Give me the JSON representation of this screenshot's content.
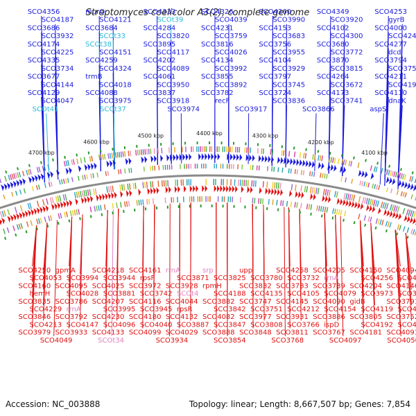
{
  "title": "Streptomyces coelicolor A3(2), complete genome",
  "accession": "Accession: NC_003888",
  "topology": "Topology: linear; Length: 8,667,507 bp; Genes: 7,854",
  "colors": {
    "forward": "#1a1adc",
    "reverse": "#e01010",
    "forward_rna": "#28b8d8",
    "reverse_rna": "#e080c0",
    "backbone": "#8a8a8a"
  },
  "ticks": [
    "4700 kbp",
    "4600 kbp",
    "4500 kbp",
    "4400 kbp",
    "4300 kbp",
    "4200 kbp",
    "4100 kbp"
  ],
  "forward_labels": [
    {
      "t": "SCO4356",
      "k": "gene"
    },
    {
      "t": "murQ",
      "k": "gene"
    },
    {
      "t": "SCO4333",
      "k": "gene"
    },
    {
      "t": "SCO4326",
      "k": "gene"
    },
    {
      "t": "SCO4260",
      "k": "gene"
    },
    {
      "t": "SCO4349",
      "k": "gene"
    },
    {
      "t": "SCO4253",
      "k": "gene"
    },
    {
      "t": "SCO4187",
      "k": "gene"
    },
    {
      "t": "SCO4121",
      "k": "gene"
    },
    {
      "t": "SCOt39",
      "k": "rna"
    },
    {
      "t": "SCO4039",
      "k": "gene"
    },
    {
      "t": "SCO3990",
      "k": "gene"
    },
    {
      "t": "SCO3920",
      "k": "gene"
    },
    {
      "t": "gyrB",
      "k": "gene"
    },
    {
      "t": "SCO3686",
      "k": "gene"
    },
    {
      "t": "SCO3684",
      "k": "gene"
    },
    {
      "t": "SCO4284",
      "k": "gene"
    },
    {
      "t": "SCO4231",
      "k": "gene"
    },
    {
      "t": "SCO4153",
      "k": "gene"
    },
    {
      "t": "SCO4102",
      "k": "gene"
    },
    {
      "t": "SCO4000",
      "k": "gene"
    },
    {
      "t": "SCO3932",
      "k": "gene"
    },
    {
      "t": "SCOt33",
      "k": "rna"
    },
    {
      "t": "SCO3820",
      "k": "gene"
    },
    {
      "t": "SCO3759",
      "k": "gene"
    },
    {
      "t": "SCO3683",
      "k": "gene"
    },
    {
      "t": "SCO4300",
      "k": "gene"
    },
    {
      "t": "SCO4244",
      "k": "gene"
    },
    {
      "t": "SCO4174",
      "k": "gene"
    },
    {
      "t": "SCOt38",
      "k": "rna"
    },
    {
      "t": "SCO3895",
      "k": "gene"
    },
    {
      "t": "SCO3816",
      "k": "gene"
    },
    {
      "t": "SCO3756",
      "k": "gene"
    },
    {
      "t": "SCO3680",
      "k": "gene"
    },
    {
      "t": "SCO4277",
      "k": "gene"
    },
    {
      "t": "SCO4225",
      "k": "gene"
    },
    {
      "t": "SCO4151",
      "k": "gene"
    },
    {
      "t": "SCO4117",
      "k": "gene"
    },
    {
      "t": "SCO4026",
      "k": "gene"
    },
    {
      "t": "SCO3955",
      "k": "gene"
    },
    {
      "t": "SCO3772",
      "k": "gene"
    },
    {
      "t": "dcd",
      "k": "gene"
    },
    {
      "t": "SCO4335",
      "k": "gene"
    },
    {
      "t": "SCO4259",
      "k": "gene"
    },
    {
      "t": "SCO4202",
      "k": "gene"
    },
    {
      "t": "SCO4134",
      "k": "gene"
    },
    {
      "t": "SCO4104",
      "k": "gene"
    },
    {
      "t": "SCO3870",
      "k": "gene"
    },
    {
      "t": "SCO3794",
      "k": "gene"
    },
    {
      "t": "SCO3734",
      "k": "gene"
    },
    {
      "t": "SCO4324",
      "k": "gene"
    },
    {
      "t": "SCO4089",
      "k": "gene"
    },
    {
      "t": "SCO3992",
      "k": "gene"
    },
    {
      "t": "SCO3929",
      "k": "gene"
    },
    {
      "t": "SCO3815",
      "k": "gene"
    },
    {
      "t": "SCO3754",
      "k": "gene"
    },
    {
      "t": "SCO3677",
      "k": "gene"
    },
    {
      "t": "trmB",
      "k": "gene"
    },
    {
      "t": "SCO4061",
      "k": "gene"
    },
    {
      "t": "SCO3855",
      "k": "gene"
    },
    {
      "t": "SCO3797",
      "k": "gene"
    },
    {
      "t": "SCO4264",
      "k": "gene"
    },
    {
      "t": "SCO4211",
      "k": "gene"
    },
    {
      "t": "SCO4144",
      "k": "gene"
    },
    {
      "t": "SCO4018",
      "k": "gene"
    },
    {
      "t": "SCO3950",
      "k": "gene"
    },
    {
      "t": "SCO3892",
      "k": "gene"
    },
    {
      "t": "SCO3745",
      "k": "gene"
    },
    {
      "t": "SCO3672",
      "k": "gene"
    },
    {
      "t": "SCO4196",
      "k": "gene"
    },
    {
      "t": "SCO4129",
      "k": "gene"
    },
    {
      "t": "SCO4088",
      "k": "gene"
    },
    {
      "t": "SCO3837",
      "k": "gene"
    },
    {
      "t": "SCO3782",
      "k": "gene"
    },
    {
      "t": "SCO3724",
      "k": "gene"
    },
    {
      "t": "SCO4173",
      "k": "gene"
    },
    {
      "t": "SCO4110",
      "k": "gene"
    },
    {
      "t": "SCO4047",
      "k": "gene"
    },
    {
      "t": "SCO3975",
      "k": "gene"
    },
    {
      "t": "SCO3918",
      "k": "gene"
    },
    {
      "t": "recF",
      "k": "gene"
    },
    {
      "t": "SCO3836",
      "k": "gene"
    },
    {
      "t": "SCO3741",
      "k": "gene"
    },
    {
      "t": "dnaK",
      "k": "gene"
    },
    {
      "t": "SCOt41",
      "k": "rna"
    },
    {
      "t": "SCOt37",
      "k": "rna"
    },
    {
      "t": "SCO3974",
      "k": "gene"
    },
    {
      "t": "SCO3917",
      "k": "gene"
    },
    {
      "t": "SCO3866",
      "k": "gene"
    },
    {
      "t": "aspS",
      "k": "gene"
    }
  ],
  "reverse_labels": [
    {
      "t": "SCO4250",
      "k": "gene"
    },
    {
      "t": "gpmA",
      "k": "gene"
    },
    {
      "t": "SCO4218",
      "k": "gene"
    },
    {
      "t": "SCO4161",
      "k": "gene"
    },
    {
      "t": "rrnA",
      "k": "rna"
    },
    {
      "t": "srp",
      "k": "rna"
    },
    {
      "t": "upp",
      "k": "gene"
    },
    {
      "t": "SCO4258",
      "k": "gene"
    },
    {
      "t": "SCO4205",
      "k": "gene"
    },
    {
      "t": "SCO4150",
      "k": "gene"
    },
    {
      "t": "SCO4094",
      "k": "gene"
    },
    {
      "t": "SCO4053",
      "k": "gene"
    },
    {
      "t": "SCO3994",
      "k": "gene"
    },
    {
      "t": "SCO3944",
      "k": "gene"
    },
    {
      "t": "rpsF",
      "k": "gene"
    },
    {
      "t": "SCO3871",
      "k": "gene"
    },
    {
      "t": "SCO3825",
      "k": "gene"
    },
    {
      "t": "SCO3780",
      "k": "gene"
    },
    {
      "t": "SCO3732",
      "k": "gene"
    },
    {
      "t": "rrnA",
      "k": "rna"
    },
    {
      "t": "SCO4256",
      "k": "gene"
    },
    {
      "t": "SCO4215",
      "k": "gene"
    },
    {
      "t": "SCO4160",
      "k": "gene"
    },
    {
      "t": "SCO4095",
      "k": "gene"
    },
    {
      "t": "SCO4025",
      "k": "gene"
    },
    {
      "t": "SCO3972",
      "k": "gene"
    },
    {
      "t": "SCO3928",
      "k": "gene"
    },
    {
      "t": "rpmH",
      "k": "gene"
    },
    {
      "t": "SCO3832",
      "k": "gene"
    },
    {
      "t": "SCO3783",
      "k": "gene"
    },
    {
      "t": "SCO3739",
      "k": "gene"
    },
    {
      "t": "SCO4204",
      "k": "gene"
    },
    {
      "t": "SCO4146",
      "k": "gene"
    },
    {
      "t": "hemH",
      "k": "gene"
    },
    {
      "t": "SCO4028",
      "k": "gene"
    },
    {
      "t": "SCO3881",
      "k": "gene"
    },
    {
      "t": "SCO3742",
      "k": "gene"
    },
    {
      "t": "SCOt4",
      "k": "rna"
    },
    {
      "t": "SCO4188",
      "k": "gene"
    },
    {
      "t": "SCO4135",
      "k": "gene"
    },
    {
      "t": "SCO4105",
      "k": "gene"
    },
    {
      "t": "SCO4079",
      "k": "gene"
    },
    {
      "t": "SCO3973",
      "k": "gene"
    },
    {
      "t": "SCO3930",
      "k": "gene"
    },
    {
      "t": "SCO3835",
      "k": "gene"
    },
    {
      "t": "SCO3786",
      "k": "gene"
    },
    {
      "t": "SCO4207",
      "k": "gene"
    },
    {
      "t": "SCO4116",
      "k": "gene"
    },
    {
      "t": "SCO4044",
      "k": "gene"
    },
    {
      "t": "SCO3882",
      "k": "gene"
    },
    {
      "t": "SCO3747",
      "k": "gene"
    },
    {
      "t": "SCO4145",
      "k": "gene"
    },
    {
      "t": "SCO4090",
      "k": "gene"
    },
    {
      "t": "gidB",
      "k": "gene"
    },
    {
      "t": "SCO3791",
      "k": "gene"
    },
    {
      "t": "SCO4229",
      "k": "gene"
    },
    {
      "t": "rrnA",
      "k": "rna"
    },
    {
      "t": "SCO3995",
      "k": "gene"
    },
    {
      "t": "SCO3945",
      "k": "gene"
    },
    {
      "t": "rpsR",
      "k": "gene"
    },
    {
      "t": "SCO3842",
      "k": "gene"
    },
    {
      "t": "SCO3751",
      "k": "gene"
    },
    {
      "t": "SCO4212",
      "k": "gene"
    },
    {
      "t": "SCO4154",
      "k": "gene"
    },
    {
      "t": "SCO4119",
      "k": "gene"
    },
    {
      "t": "SCO4033",
      "k": "gene"
    },
    {
      "t": "SCO3846",
      "k": "gene"
    },
    {
      "t": "SCO3792",
      "k": "gene"
    },
    {
      "t": "SCO4230",
      "k": "gene"
    },
    {
      "t": "SCO4180",
      "k": "gene"
    },
    {
      "t": "SCO4132",
      "k": "gene"
    },
    {
      "t": "SCO4082",
      "k": "gene"
    },
    {
      "t": "SCO3977",
      "k": "gene"
    },
    {
      "t": "SCO3931",
      "k": "gene"
    },
    {
      "t": "SCO3886",
      "k": "gene"
    },
    {
      "t": "SCO3805",
      "k": "gene"
    },
    {
      "t": "SCO3752",
      "k": "gene"
    },
    {
      "t": "SCO4213",
      "k": "gene"
    },
    {
      "t": "SCO4147",
      "k": "gene"
    },
    {
      "t": "SCO4096",
      "k": "gene"
    },
    {
      "t": "SCO4040",
      "k": "gene"
    },
    {
      "t": "SCO3887",
      "k": "gene"
    },
    {
      "t": "SCO3847",
      "k": "gene"
    },
    {
      "t": "SCO3808",
      "k": "gene"
    },
    {
      "t": "SCO3766",
      "k": "gene"
    },
    {
      "t": "ispD",
      "k": "gene"
    },
    {
      "t": "SCO4192",
      "k": "gene"
    },
    {
      "t": "SCO4077",
      "k": "gene"
    },
    {
      "t": "SCO3979",
      "k": "gene"
    },
    {
      "t": "SCO3933",
      "k": "gene"
    },
    {
      "t": "SCO4133",
      "k": "gene"
    },
    {
      "t": "SCO4099",
      "k": "gene"
    },
    {
      "t": "SCO4029",
      "k": "gene"
    },
    {
      "t": "SCO3888",
      "k": "gene"
    },
    {
      "t": "SCO3848",
      "k": "gene"
    },
    {
      "t": "SCO3811",
      "k": "gene"
    },
    {
      "t": "SCO3767",
      "k": "gene"
    },
    {
      "t": "SCO4181",
      "k": "gene"
    },
    {
      "t": "SCO4091",
      "k": "gene"
    },
    {
      "t": "SCO4049",
      "k": "gene"
    },
    {
      "t": "SCOt34",
      "k": "rna"
    },
    {
      "t": "SCO3934",
      "k": "gene"
    },
    {
      "t": "SCO3854",
      "k": "gene"
    },
    {
      "t": "SCO3768",
      "k": "gene"
    },
    {
      "t": "SCO4097",
      "k": "gene"
    },
    {
      "t": "SCO4050",
      "k": "gene"
    }
  ]
}
